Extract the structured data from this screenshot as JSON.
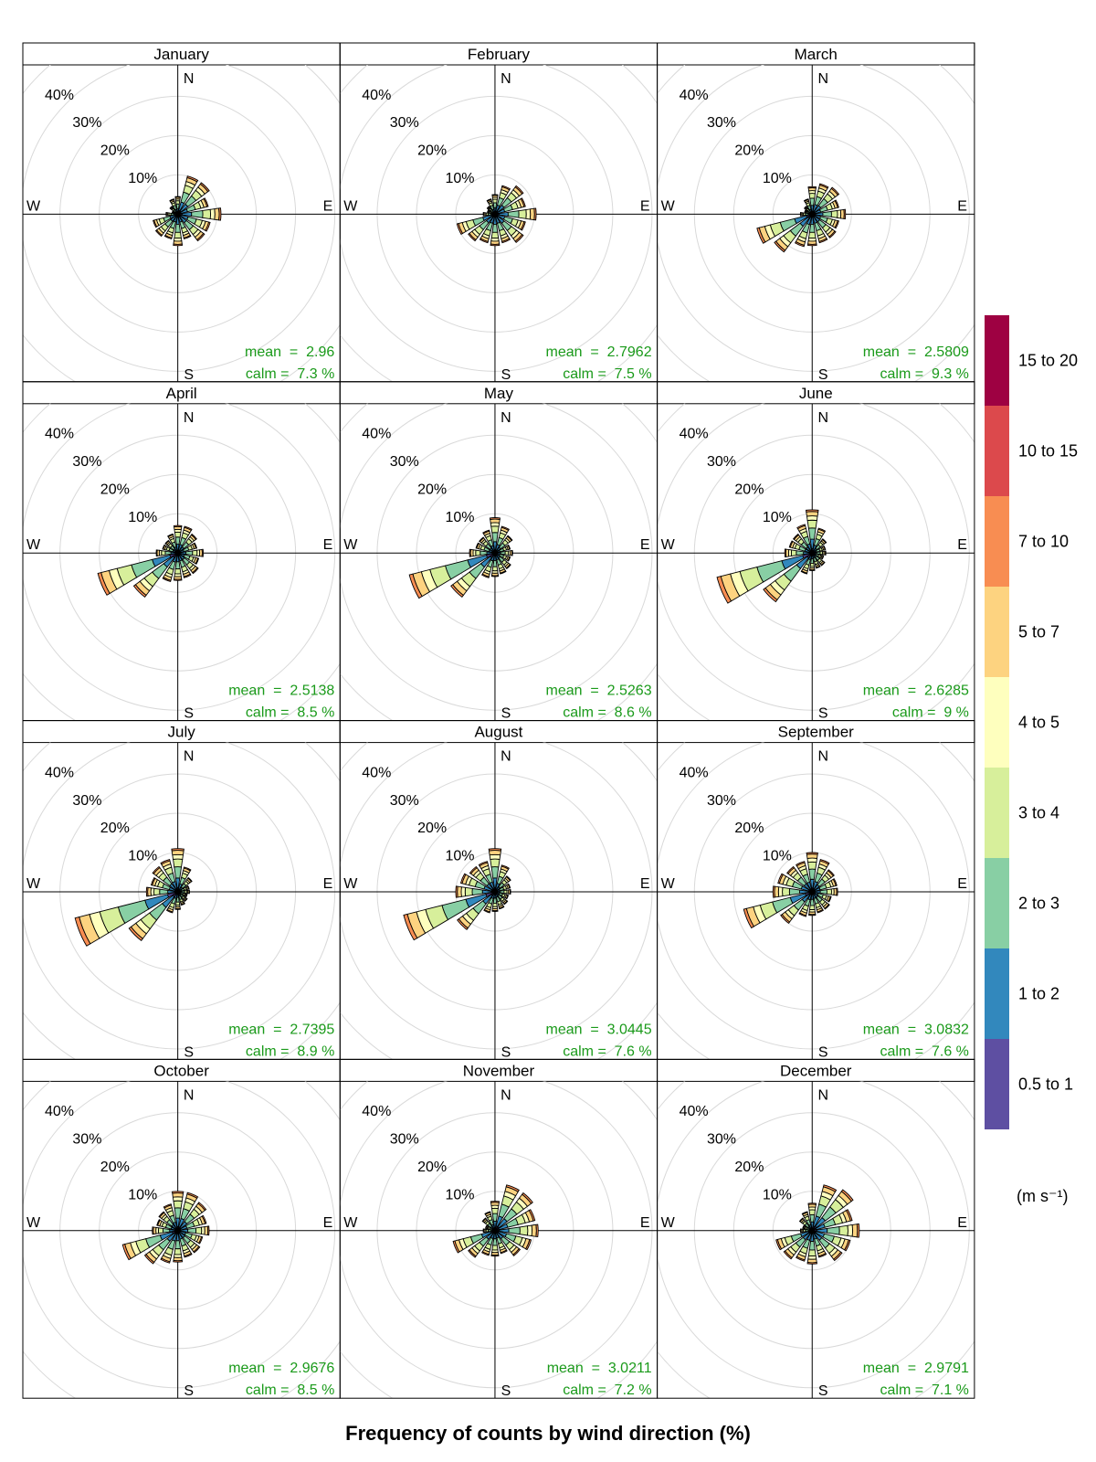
{
  "chart_data": {
    "type": "windrose",
    "xlabel": "Frequency of counts by wind direction (%)",
    "directions": [
      "N",
      "NNE",
      "NE",
      "ENE",
      "E",
      "ESE",
      "SE",
      "SSE",
      "S",
      "SSW",
      "SW",
      "WSW",
      "W",
      "WNW",
      "NW",
      "NNW"
    ],
    "compass_labels": {
      "n": "N",
      "e": "E",
      "s": "S",
      "w": "W"
    },
    "radial_ticks": [
      "10%",
      "20%",
      "30%",
      "40%"
    ],
    "radial_max": 40,
    "legend": {
      "unit": "(m s⁻¹)",
      "bins": [
        {
          "label": "0.5 to 1",
          "color": "#5E4FA2"
        },
        {
          "label": "1 to 2",
          "color": "#3288BD"
        },
        {
          "label": "2 to 3",
          "color": "#88CFA4"
        },
        {
          "label": "3 to 4",
          "color": "#D7EF9B"
        },
        {
          "label": "4 to 5",
          "color": "#FEFFBE"
        },
        {
          "label": "5 to 7",
          "color": "#FDD380"
        },
        {
          "label": "7 to 10",
          "color": "#F88D52"
        },
        {
          "label": "10 to 15",
          "color": "#DC494C"
        },
        {
          "label": "15 to 20",
          "color": "#9E0142"
        }
      ]
    },
    "panels": [
      {
        "month": "January",
        "mean": "mean  =  2.96",
        "calm": "calm =  7.3 %",
        "totals": [
          4.5,
          10,
          10,
          8,
          11,
          8.5,
          8.5,
          6.5,
          8,
          6.5,
          7,
          6.5,
          3,
          1.5,
          2.5,
          4
        ]
      },
      {
        "month": "February",
        "mean": "mean  =  2.7962",
        "calm": "calm =  7.5 %",
        "totals": [
          5,
          7.5,
          9,
          8,
          10.5,
          8,
          9,
          7.5,
          8,
          7.5,
          8.5,
          10,
          3,
          2,
          2.5,
          4
        ]
      },
      {
        "month": "March",
        "mean": "mean  =  2.5809",
        "calm": "calm =  9.3 %",
        "totals": [
          7,
          8,
          8.5,
          7,
          8.5,
          7,
          7.5,
          7.5,
          8,
          8.5,
          12,
          14.5,
          3,
          2,
          2.5,
          4
        ]
      },
      {
        "month": "April",
        "mean": "mean  =  2.5138",
        "calm": "calm =  8.5 %",
        "totals": [
          7,
          7,
          6,
          5,
          6.5,
          5.5,
          6.5,
          6.5,
          7,
          7.5,
          14,
          21,
          5.5,
          4,
          4,
          5
        ]
      },
      {
        "month": "May",
        "mean": "mean  =  2.5263",
        "calm": "calm =  8.6 %",
        "totals": [
          9,
          7,
          5.5,
          4,
          4.5,
          4,
          5,
          5.5,
          6,
          6.5,
          14,
          22.5,
          6.5,
          5,
          5,
          6
        ]
      },
      {
        "month": "June",
        "mean": "mean  =  2.6285",
        "calm": "calm =  9 %",
        "totals": [
          11,
          6.5,
          4.5,
          3.5,
          3.5,
          3,
          4,
          4,
          4.5,
          5.5,
          15.5,
          25,
          7,
          6,
          6,
          7.5
        ]
      },
      {
        "month": "July",
        "mean": "mean  =  2.7395",
        "calm": "calm =  8.9 %",
        "totals": [
          11,
          6.5,
          4.5,
          3,
          3,
          2.5,
          3,
          3.5,
          4.5,
          5.5,
          15.5,
          27,
          8,
          7,
          8,
          8.5
        ]
      },
      {
        "month": "August",
        "mean": "mean  =  3.0445",
        "calm": "calm =  7.6 %",
        "totals": [
          11,
          7,
          5,
          4,
          4,
          3.5,
          4,
          4.5,
          5,
          5.5,
          12,
          24,
          10,
          9,
          8,
          8
        ]
      },
      {
        "month": "September",
        "mean": "mean  =  3.0832",
        "calm": "calm =  7.6 %",
        "totals": [
          10,
          8.5,
          7,
          6.5,
          6.5,
          5,
          5.5,
          5.5,
          6,
          6.5,
          10,
          18,
          10,
          9,
          8,
          8
        ]
      },
      {
        "month": "October",
        "mean": "mean  =  2.9676",
        "calm": "calm =  8.5 %",
        "totals": [
          10,
          10,
          9,
          7.5,
          8,
          6.5,
          7,
          7,
          8,
          8.5,
          10.5,
          14.5,
          6.5,
          5.5,
          6,
          7
        ]
      },
      {
        "month": "November",
        "mean": "mean  =  3.0211",
        "calm": "calm =  7.2 %",
        "totals": [
          7.5,
          12,
          12,
          10.5,
          11,
          9.5,
          8,
          6,
          6.5,
          6.5,
          8.5,
          11,
          3,
          2.5,
          4,
          5
        ]
      },
      {
        "month": "December",
        "mean": "mean  =  2.9791",
        "calm": "calm =  7.1 %",
        "totals": [
          7,
          12,
          13,
          10.5,
          12,
          10,
          9.5,
          7,
          8.5,
          8,
          9,
          9.5,
          3,
          2.5,
          4,
          5
        ]
      }
    ]
  }
}
